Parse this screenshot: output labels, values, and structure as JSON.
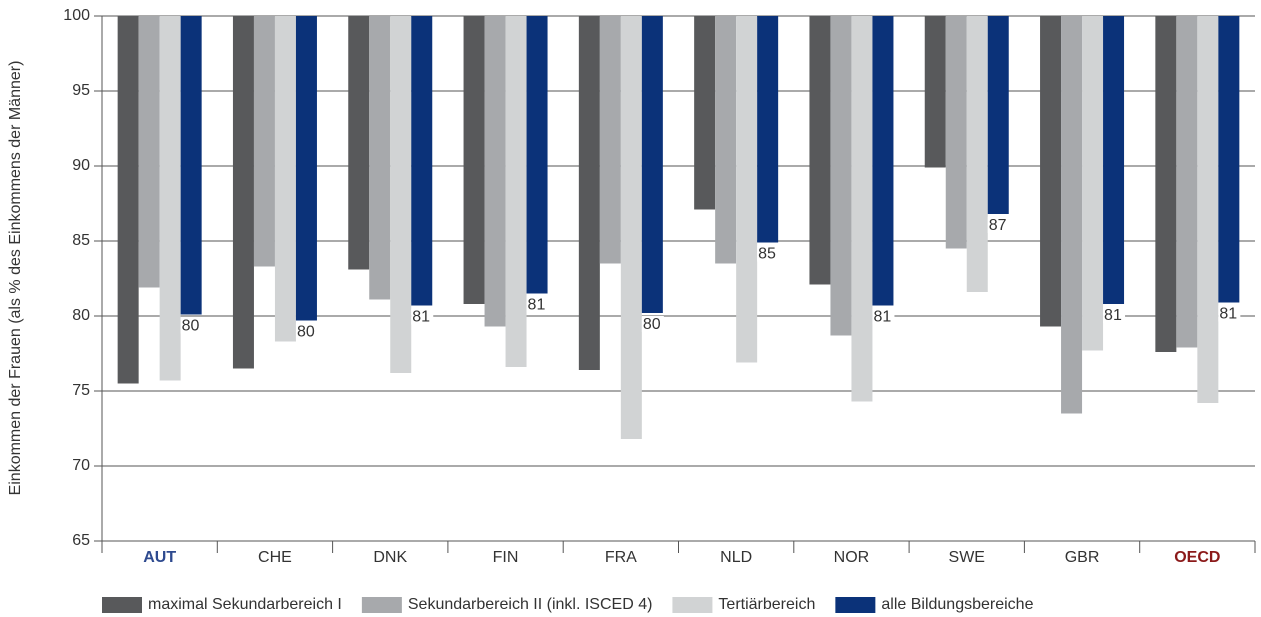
{
  "chart_data": {
    "type": "bar",
    "y_label": "Einkommen der Frauen (als % des Einkommens der Männer)",
    "categories": [
      "AUT",
      "CHE",
      "DNK",
      "FIN",
      "FRA",
      "NLD",
      "NOR",
      "SWE",
      "GBR",
      "OECD"
    ],
    "series": [
      {
        "name": "maximal Sekundarbereich I",
        "color": "#58595b",
        "values": [
          75.5,
          76.5,
          83.1,
          80.8,
          76.4,
          87.1,
          82.1,
          89.9,
          79.3,
          77.6
        ]
      },
      {
        "name": "Sekundarbereich II (inkl. ISCED 4)",
        "color": "#a7a9ac",
        "values": [
          81.9,
          83.3,
          81.1,
          79.3,
          83.5,
          83.5,
          78.7,
          84.5,
          73.5,
          77.9
        ]
      },
      {
        "name": "Tertiärbereich",
        "color": "#d1d3d4",
        "values": [
          75.7,
          78.3,
          76.2,
          76.6,
          71.8,
          76.9,
          74.3,
          81.6,
          77.7,
          74.2
        ]
      },
      {
        "name": "alle Bildungsbereiche",
        "color": "#0b3279",
        "values": [
          80.1,
          79.7,
          80.7,
          81.5,
          80.2,
          84.9,
          80.7,
          86.8,
          80.8,
          80.9
        ],
        "value_labels": [
          "80",
          "80",
          "81",
          "81",
          "80",
          "85",
          "81",
          "87",
          "81",
          "81"
        ]
      }
    ],
    "ylim": [
      65,
      100
    ],
    "yticks": [
      65,
      70,
      75,
      80,
      85,
      90,
      95,
      100
    ],
    "grid": true
  }
}
